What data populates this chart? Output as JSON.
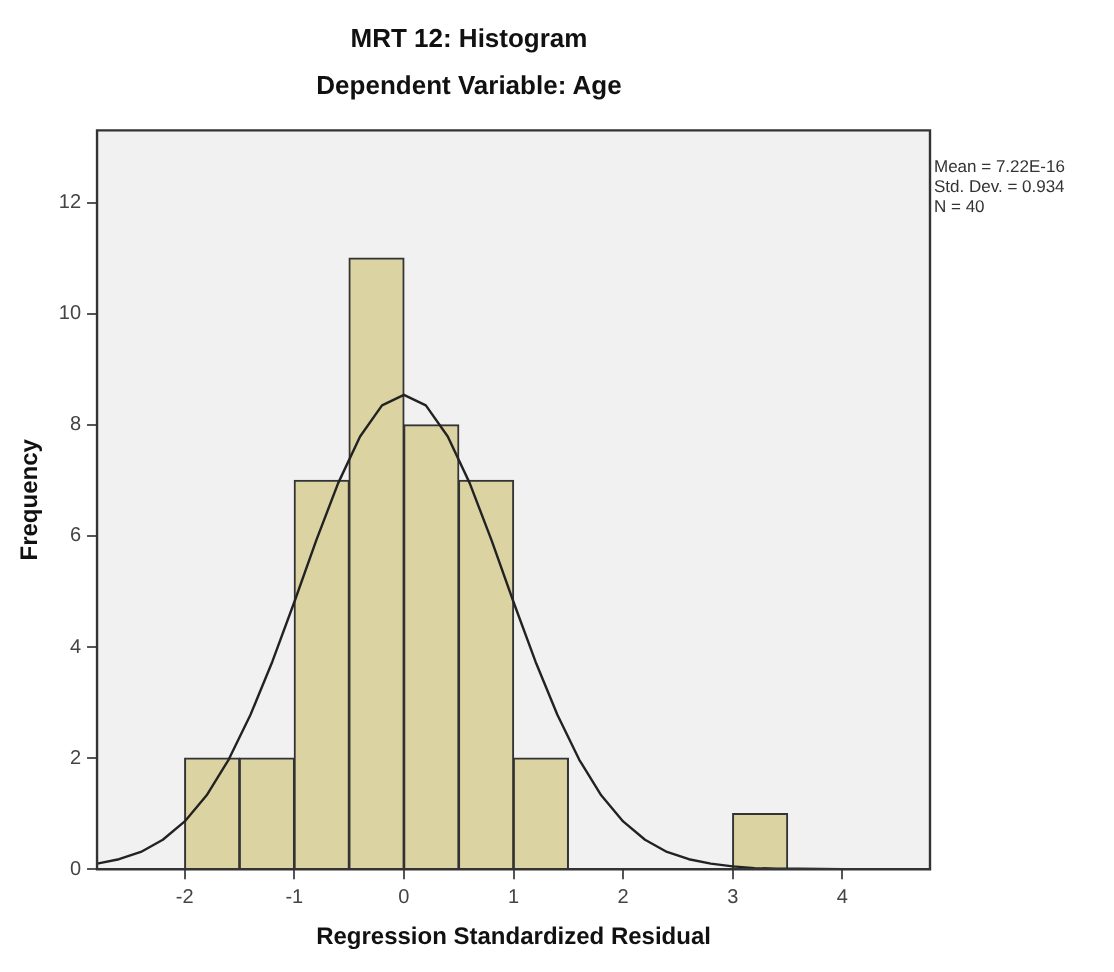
{
  "chart_data": {
    "type": "histogram",
    "title": "MRT 12: Histogram",
    "subtitle": "Dependent Variable: Age",
    "xlabel": "Regression Standardized Residual",
    "ylabel": "Frequency",
    "bins": [
      -2,
      -1.5,
      -1,
      -0.5,
      0,
      0.5,
      1,
      1.5,
      2,
      2.5,
      3,
      3.5
    ],
    "values": [
      2,
      2,
      7,
      11,
      8,
      7,
      2,
      0,
      0,
      0,
      1
    ],
    "color": "#dcd3a3",
    "series": [
      {
        "type": "line",
        "color": "#222222",
        "x": [
          -2.8,
          -2.6,
          -2.4,
          -2.2,
          -2,
          -1.8,
          -1.6,
          -1.4,
          -1.2,
          -1,
          -0.8,
          -0.6,
          -0.4,
          -0.2,
          0,
          0.2,
          0.4,
          0.6,
          0.8,
          1,
          1.2,
          1.4,
          1.6,
          1.8,
          2,
          2.2,
          2.4,
          2.6,
          2.8,
          3,
          3.2,
          3.4,
          3.6,
          4,
          4.4,
          4.8
        ],
        "values": [
          0.1,
          0.18,
          0.31,
          0.53,
          0.86,
          1.33,
          1.97,
          2.78,
          3.74,
          4.81,
          5.92,
          6.95,
          7.79,
          8.35,
          8.54,
          8.35,
          7.79,
          6.95,
          5.92,
          4.81,
          3.74,
          2.78,
          1.97,
          1.33,
          0.86,
          0.53,
          0.31,
          0.18,
          0.1,
          0.05,
          0.02,
          0.01,
          0.01,
          0,
          0,
          0
        ]
      }
    ],
    "xlim": [
      -2.8,
      4.8
    ],
    "xticks": [
      -2,
      -1,
      0,
      1,
      2,
      3,
      4
    ],
    "ylim": [
      0,
      13.3
    ],
    "yticks": [
      0,
      2,
      4,
      6,
      8,
      10,
      12
    ],
    "grid": false,
    "legend": false,
    "marker": "none",
    "line_style": "solid",
    "annotations": [
      "Mean = 7.22E-16",
      "Std. Dev. = 0.934",
      "N = 40"
    ]
  }
}
